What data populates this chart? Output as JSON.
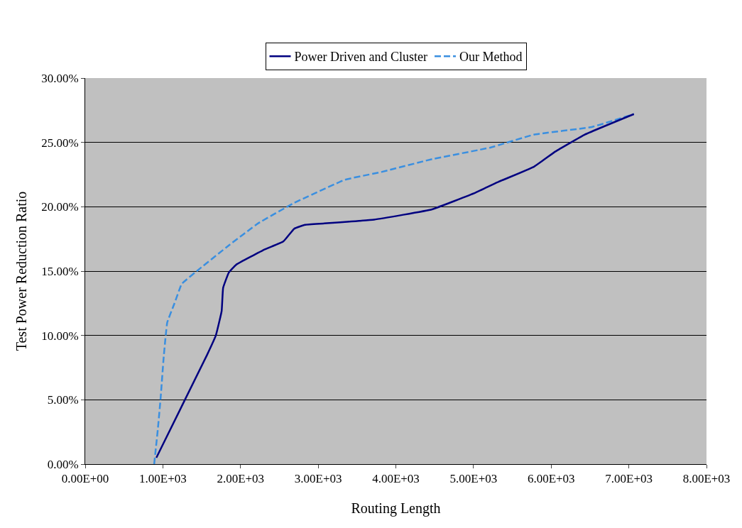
{
  "chart_data": {
    "type": "line",
    "xlabel": "Routing Length",
    "ylabel": "Test Power Reduction Ratio",
    "xlim": [
      0,
      8000
    ],
    "ylim": [
      0,
      30
    ],
    "xticks": [
      {
        "value": 0,
        "label": "0.00E+00"
      },
      {
        "value": 1000,
        "label": "1.00E+03"
      },
      {
        "value": 2000,
        "label": "2.00E+03"
      },
      {
        "value": 3000,
        "label": "3.00E+03"
      },
      {
        "value": 4000,
        "label": "4.00E+03"
      },
      {
        "value": 5000,
        "label": "5.00E+03"
      },
      {
        "value": 6000,
        "label": "6.00E+03"
      },
      {
        "value": 7000,
        "label": "7.00E+03"
      },
      {
        "value": 8000,
        "label": "8.00E+03"
      }
    ],
    "yticks": [
      {
        "value": 0,
        "label": "0.00%"
      },
      {
        "value": 5,
        "label": "5.00%"
      },
      {
        "value": 10,
        "label": "10.00%"
      },
      {
        "value": 15,
        "label": "15.00%"
      },
      {
        "value": 20,
        "label": "20.00%"
      },
      {
        "value": 25,
        "label": "25.00%"
      },
      {
        "value": 30,
        "label": "30.00%"
      }
    ],
    "grid": "y",
    "legend": "top",
    "marker": "none",
    "series": [
      {
        "name": "Power Driven and Cluster",
        "color": "#000080",
        "line_style": "solid",
        "x": [
          916,
          1570,
          1682,
          1757,
          1776,
          1850,
          1944,
          2318,
          2551,
          2692,
          2832,
          3065,
          3720,
          4467,
          5028,
          5308,
          5776,
          6056,
          6430,
          7065
        ],
        "values": [
          0.5,
          8.5,
          10.0,
          11.9,
          13.7,
          14.9,
          15.5,
          16.7,
          17.3,
          18.3,
          18.6,
          18.7,
          19.0,
          19.8,
          21.1,
          21.9,
          23.1,
          24.3,
          25.6,
          27.2
        ]
      },
      {
        "name": "Our Method",
        "color": "#3a8fe0",
        "line_style": "dashed",
        "x": [
          888,
          935,
          972,
          1009,
          1056,
          1150,
          1243,
          1477,
          1850,
          2224,
          2692,
          3346,
          3813,
          4467,
          5215,
          5776,
          6523,
          7065
        ],
        "values": [
          0,
          2.7,
          5.2,
          8.2,
          11.0,
          12.5,
          14.0,
          15.2,
          17.0,
          18.7,
          20.3,
          22.1,
          22.7,
          23.7,
          24.6,
          25.6,
          26.2,
          27.2
        ]
      }
    ]
  }
}
